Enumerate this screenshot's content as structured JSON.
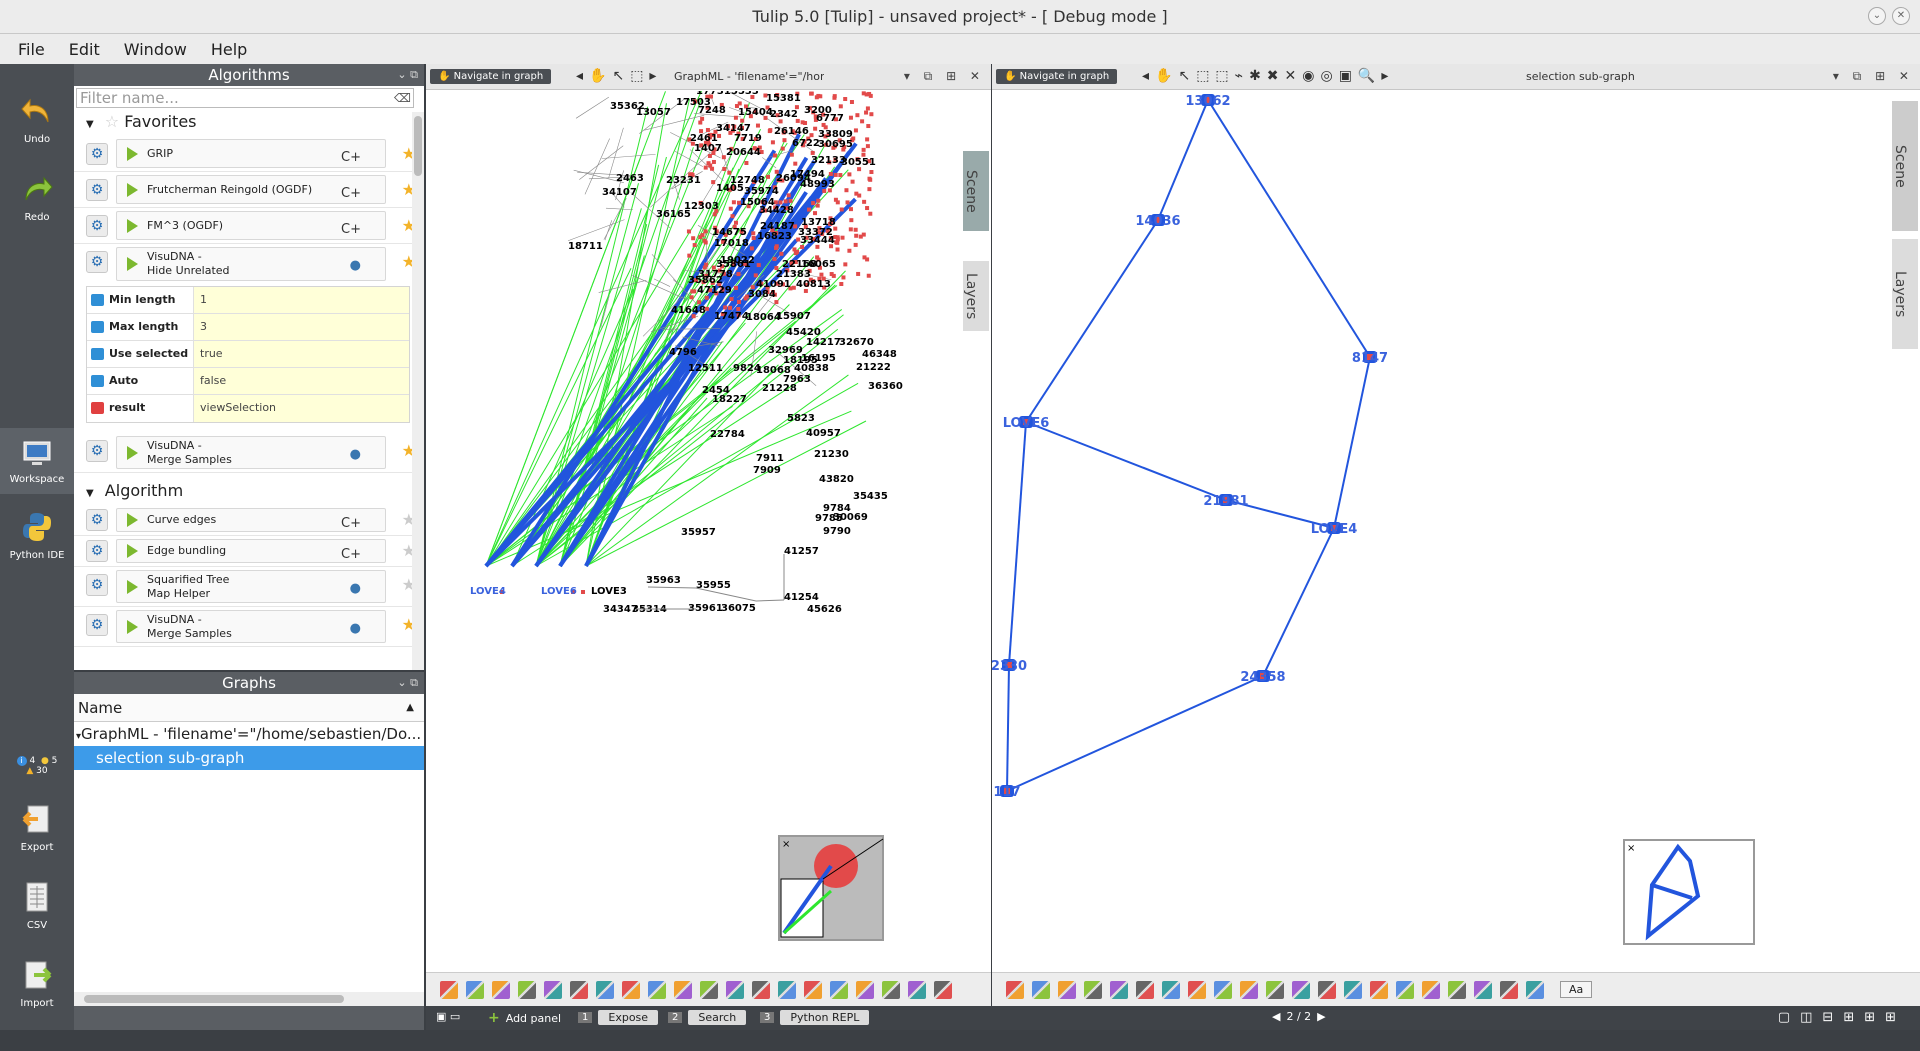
{
  "window": {
    "title": "Tulip 5.0 [Tulip] - unsaved project* - [ Debug mode ]"
  },
  "menu": [
    "File",
    "Edit",
    "Window",
    "Help"
  ],
  "left_toolbar": {
    "undo": "Undo",
    "redo": "Redo",
    "workspace": "Workspace",
    "python_ide": "Python IDE",
    "info_count": "4",
    "python_count": "5",
    "warning_count": "30",
    "export": "Export",
    "csv": "CSV",
    "import": "Import"
  },
  "algorithms": {
    "panel_title": "Algorithms",
    "filter_placeholder": "Filter name...",
    "favorites_title": "Favorites",
    "favorites": [
      {
        "label": "GRIP",
        "kind": "C+",
        "starred": true
      },
      {
        "label": "Frutcherman Reingold (OGDF)",
        "kind": "C+",
        "starred": true
      },
      {
        "label": "FM^3 (OGDF)",
        "kind": "C+",
        "starred": true
      },
      {
        "label": "VisuDNA -\nHide Unrelated",
        "kind": "py",
        "starred": true
      }
    ],
    "params": [
      {
        "name": "Min length",
        "value": "1",
        "dir": "in"
      },
      {
        "name": "Max length",
        "value": "3",
        "dir": "in"
      },
      {
        "name": "Use selected",
        "value": "true",
        "dir": "in"
      },
      {
        "name": "Auto subgraph",
        "value": "false",
        "dir": "in"
      },
      {
        "name": "result",
        "value": "viewSelection",
        "dir": "out"
      }
    ],
    "fav_after": {
      "label": "VisuDNA -\nMerge Samples",
      "kind": "py",
      "starred": true
    },
    "algorithm_title": "Algorithm",
    "algorithm_items": [
      {
        "label": "Curve edges",
        "kind": "C+",
        "starred": false
      },
      {
        "label": "Edge bundling",
        "kind": "C+",
        "starred": false
      },
      {
        "label": "Squarified Tree\nMap Helper",
        "kind": "py",
        "starred": false
      },
      {
        "label": "VisuDNA -\nMerge Samples",
        "kind": "py",
        "starred": true
      }
    ]
  },
  "graphs": {
    "panel_title": "Graphs",
    "column_name": "Name",
    "root": "GraphML - 'filename'=\"/home/sebastien/Do...",
    "selected": "selection sub-graph"
  },
  "view1": {
    "nav_label": "Navigate in graph",
    "graph_name": "GraphML - 'filename'=\"/home/sebast",
    "side_tabs": [
      "Scene",
      "Layers"
    ]
  },
  "view2": {
    "nav_label": "Navigate in graph",
    "graph_name": "selection sub-graph",
    "side_tabs": [
      "Scene",
      "Layers"
    ],
    "text_button": "Aa"
  },
  "graph1_labels": [
    "35362",
    "13057",
    "17731",
    "17503",
    "7248",
    "5533",
    "15404",
    "2342",
    "15381",
    "3200",
    "6777",
    "34147",
    "2461",
    "1407",
    "7719",
    "20644",
    "6722",
    "26146",
    "33809",
    "30695",
    "32133",
    "30551",
    "2463",
    "23231",
    "34107",
    "1405",
    "12748",
    "26094",
    "12303",
    "36165",
    "15064",
    "34428",
    "35974",
    "17494",
    "48993",
    "24187",
    "16823",
    "14675",
    "17018",
    "13718",
    "33372",
    "18711",
    "31778",
    "35861",
    "19022",
    "35862",
    "47129",
    "3084",
    "22168",
    "41648",
    "17474",
    "41091",
    "18064",
    "15907",
    "33444",
    "40813",
    "21383",
    "16065",
    "4796",
    "32969",
    "45420",
    "14217",
    "32670",
    "46348",
    "12511",
    "9824",
    "18068",
    "18195",
    "7963",
    "16195",
    "40838",
    "21222",
    "2454",
    "18227",
    "36360",
    "21228",
    "22784",
    "5823",
    "40957",
    "21230",
    "7911",
    "7909",
    "43820",
    "30069",
    "35435",
    "9784",
    "9785",
    "9790",
    "35957",
    "41257",
    "35963",
    "35955",
    "41254",
    "45626",
    "34347",
    "35314",
    "35961",
    "36075",
    "LOVE4",
    "LOVE6",
    "LOVE3"
  ],
  "graph2_labels": [
    "13062",
    "14036",
    "8147",
    "LOVE6",
    "21981",
    "LOVE4",
    "2330",
    "24358",
    "117"
  ],
  "bottom": {
    "add_panel": "Add panel",
    "tabs": [
      {
        "num": "1",
        "label": "Expose"
      },
      {
        "num": "2",
        "label": "Search"
      },
      {
        "num": "3",
        "label": "Python REPL"
      }
    ],
    "page": "2 / 2"
  },
  "colors": {
    "node_red": "#e24a4a",
    "edge_green": "#2ee62e",
    "edge_blue": "#2255dd",
    "selection": "#3d9be9"
  }
}
